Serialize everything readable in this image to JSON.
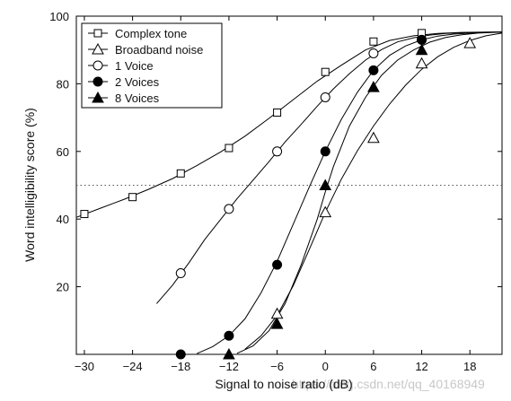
{
  "chart_data": {
    "type": "line",
    "xlabel": "Signal to noise ratio (dB)",
    "ylabel": "Word intelligibility score (%)",
    "xlim": [
      -31,
      22
    ],
    "ylim": [
      0,
      100
    ],
    "xticks": [
      -30,
      -24,
      -18,
      -12,
      -6,
      0,
      6,
      12,
      18
    ],
    "yticks": [
      20,
      40,
      60,
      80,
      100
    ],
    "xtick_labels": [
      "−30",
      "−24",
      "−18",
      "−12",
      "−6",
      "0",
      "6",
      "12",
      "18"
    ],
    "ytick_labels": [
      "20",
      "40",
      "60",
      "80",
      "100"
    ],
    "reference_line_y": 50,
    "legend_position": "top-left",
    "grid": false,
    "series": [
      {
        "name": "Complex tone",
        "marker": "square-open",
        "x": [
          -30,
          -24,
          -18,
          -12,
          -6,
          0,
          6,
          12
        ],
        "y": [
          41.5,
          46.5,
          53.5,
          61,
          71.5,
          83.5,
          92.5,
          95
        ],
        "curve_x": [
          -31,
          -28,
          -25,
          -22,
          -19,
          -16,
          -13,
          -10,
          -7,
          -4,
          -1,
          2,
          5,
          8,
          11,
          14,
          17,
          20,
          22
        ],
        "curve_y": [
          40.5,
          43.2,
          45.9,
          48.8,
          52.0,
          55.8,
          59.9,
          64.5,
          69.8,
          75.3,
          80.8,
          85.5,
          90.0,
          92.8,
          94.2,
          94.9,
          95.2,
          95.3,
          95.3
        ]
      },
      {
        "name": "Broadband noise",
        "marker": "triangle-open",
        "x": [
          -6,
          0,
          6,
          12,
          18
        ],
        "y": [
          12,
          42,
          64,
          86,
          92
        ],
        "curve_x": [
          -10,
          -8,
          -6,
          -4,
          -2,
          0,
          2,
          4,
          6,
          8,
          10,
          12,
          14,
          16,
          18,
          20,
          22
        ],
        "curve_y": [
          1.5,
          5.5,
          11.5,
          20.3,
          31.0,
          42.0,
          51.8,
          60.2,
          67.5,
          74.0,
          79.6,
          84.3,
          88.0,
          90.8,
          92.8,
          94.2,
          95.0
        ]
      },
      {
        "name": "1 Voice",
        "marker": "circle-open",
        "x": [
          -18,
          -12,
          -6,
          0,
          6,
          12
        ],
        "y": [
          24,
          43,
          60,
          76,
          89,
          93
        ],
        "curve_x": [
          -21,
          -19,
          -17,
          -15,
          -13,
          -11,
          -9,
          -7,
          -5,
          -3,
          -1,
          1,
          3,
          5,
          7,
          9,
          11,
          13,
          15,
          17,
          19,
          21,
          22
        ],
        "curve_y": [
          15,
          20.5,
          27,
          34,
          40,
          46,
          51.5,
          57,
          62.8,
          68,
          73.4,
          78.5,
          83,
          87,
          90.1,
          92.4,
          93.6,
          94.4,
          94.9,
          95.1,
          95.2,
          95.3,
          95.3
        ]
      },
      {
        "name": "2 Voices",
        "marker": "circle-filled",
        "x": [
          -18,
          -12,
          -6,
          0,
          6,
          12
        ],
        "y": [
          0,
          5.5,
          26.5,
          60,
          84,
          93
        ],
        "curve_x": [
          -16,
          -14,
          -12,
          -10,
          -8,
          -6,
          -4,
          -2,
          0,
          2,
          4,
          6,
          8,
          10,
          12,
          14,
          16,
          18,
          20,
          22
        ],
        "curve_y": [
          0.2,
          2.3,
          5.5,
          10.5,
          18.2,
          27.5,
          38.5,
          49.5,
          60,
          69.5,
          77.5,
          84,
          88.4,
          91.2,
          93.0,
          94.1,
          94.7,
          95.0,
          95.2,
          95.3
        ]
      },
      {
        "name": "8 Voices",
        "marker": "triangle-filled",
        "x": [
          -12,
          -6,
          0,
          6,
          12
        ],
        "y": [
          0,
          9,
          50,
          79,
          90
        ],
        "curve_x": [
          -11,
          -9,
          -7,
          -5,
          -3,
          -1,
          0,
          1,
          3,
          5,
          7,
          9,
          11,
          13,
          15,
          17,
          19,
          21,
          22
        ],
        "curve_y": [
          0.3,
          2.5,
          7,
          15,
          26.5,
          40,
          48,
          55.5,
          67.5,
          76,
          82.5,
          87,
          90,
          92.3,
          93.7,
          94.5,
          95,
          95.2,
          95.3
        ]
      }
    ]
  },
  "watermark": "https://blog.csdn.net/qq_40168949"
}
